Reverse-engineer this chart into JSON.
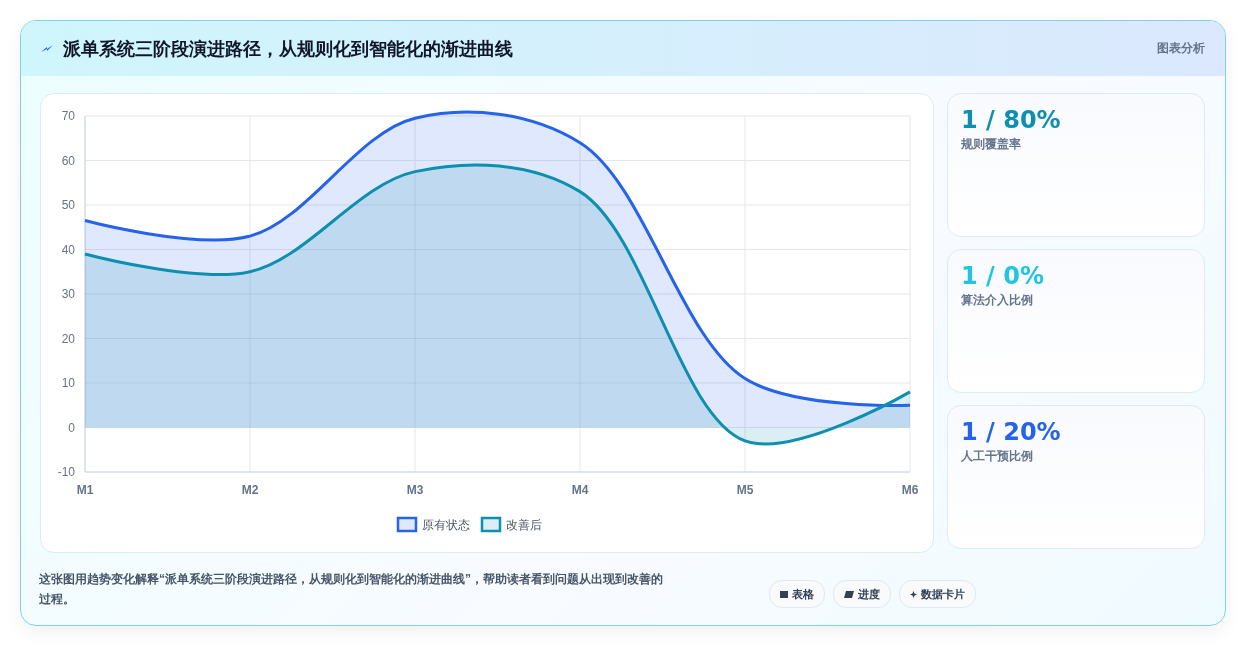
{
  "chart_data": [
    {
      "type": "area",
      "title": "派单系统三阶段演进路径，从规则化到智能化的渐进曲线",
      "categories": [
        "M1",
        "M2",
        "M3",
        "M4",
        "M5",
        "M6"
      ],
      "series": [
        {
          "name": "原有状态",
          "color": "#2563eb",
          "values": [
            46.5,
            43,
            69.5,
            64,
            11,
            5
          ]
        },
        {
          "name": "改善后",
          "color": "#0e8fb0",
          "values": [
            39,
            35,
            57.5,
            53,
            -3,
            8
          ]
        }
      ],
      "ylim": [
        -10,
        70
      ],
      "yticks": [
        -10,
        0,
        10,
        20,
        30,
        40,
        50,
        60,
        70
      ],
      "grid": true,
      "legend": "bottom",
      "marker": "none",
      "annotations": [
        "图表分析",
        "这张图用趋势变化解释“派单系统三阶段演进路径，从规则化到智能化的渐进曲线”，帮助读者看到问题从出现到改善的过程。",
        "表格",
        "进度",
        "数据卡片"
      ]
    },
    {
      "type": "other",
      "annotations": [
        "1 / 80%",
        "规则覆盖率",
        "1 / 0%",
        "算法介入比例",
        "1 / 20%",
        "人工干预比例"
      ]
    }
  ]
}
